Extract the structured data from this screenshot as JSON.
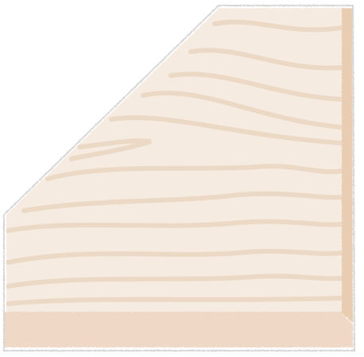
{
  "colors": {
    "background": "#ffffff",
    "panel_face": "#f6ebe1",
    "panel_side": "#e9cdb2",
    "panel_bottom": "#efd9c6",
    "grain": "#ecd9c5",
    "rough_edge": "#cfcfcf"
  },
  "icons": {
    "panel": "wood-board-corner-icon"
  }
}
